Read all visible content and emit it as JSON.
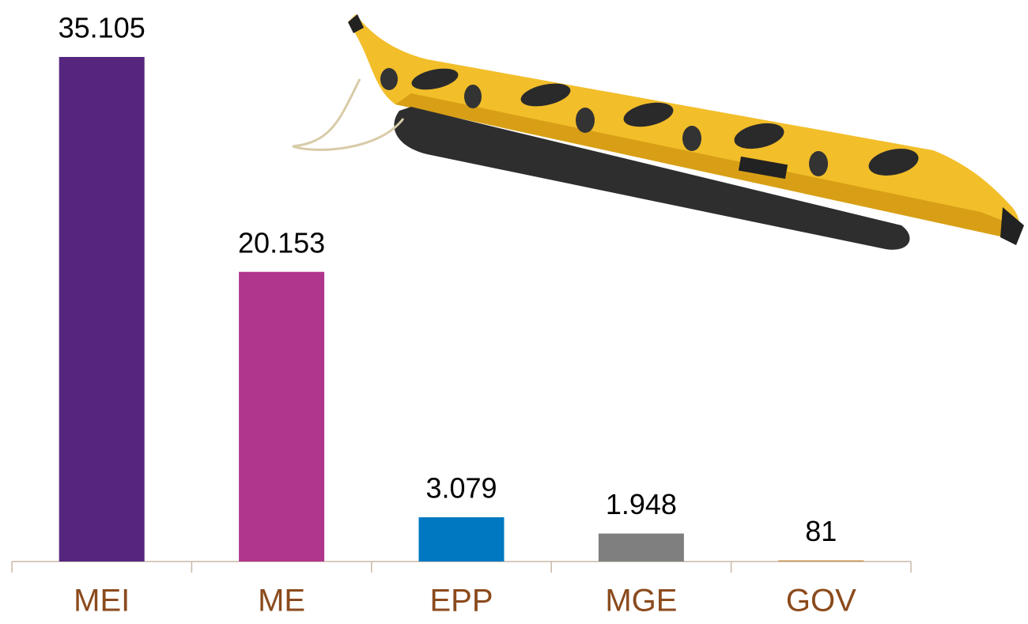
{
  "chart_data": {
    "type": "bar",
    "categories": [
      "MEI",
      "ME",
      "EPP",
      "MGE",
      "GOV"
    ],
    "values": [
      35105,
      20153,
      3079,
      1948,
      81
    ],
    "value_labels": [
      "35.105",
      "20.153",
      "3.079",
      "1.948",
      "81"
    ],
    "colors": [
      "#56267f",
      "#b0358c",
      "#0078c1",
      "#7f7f7f",
      "#c8944e"
    ]
  }
}
